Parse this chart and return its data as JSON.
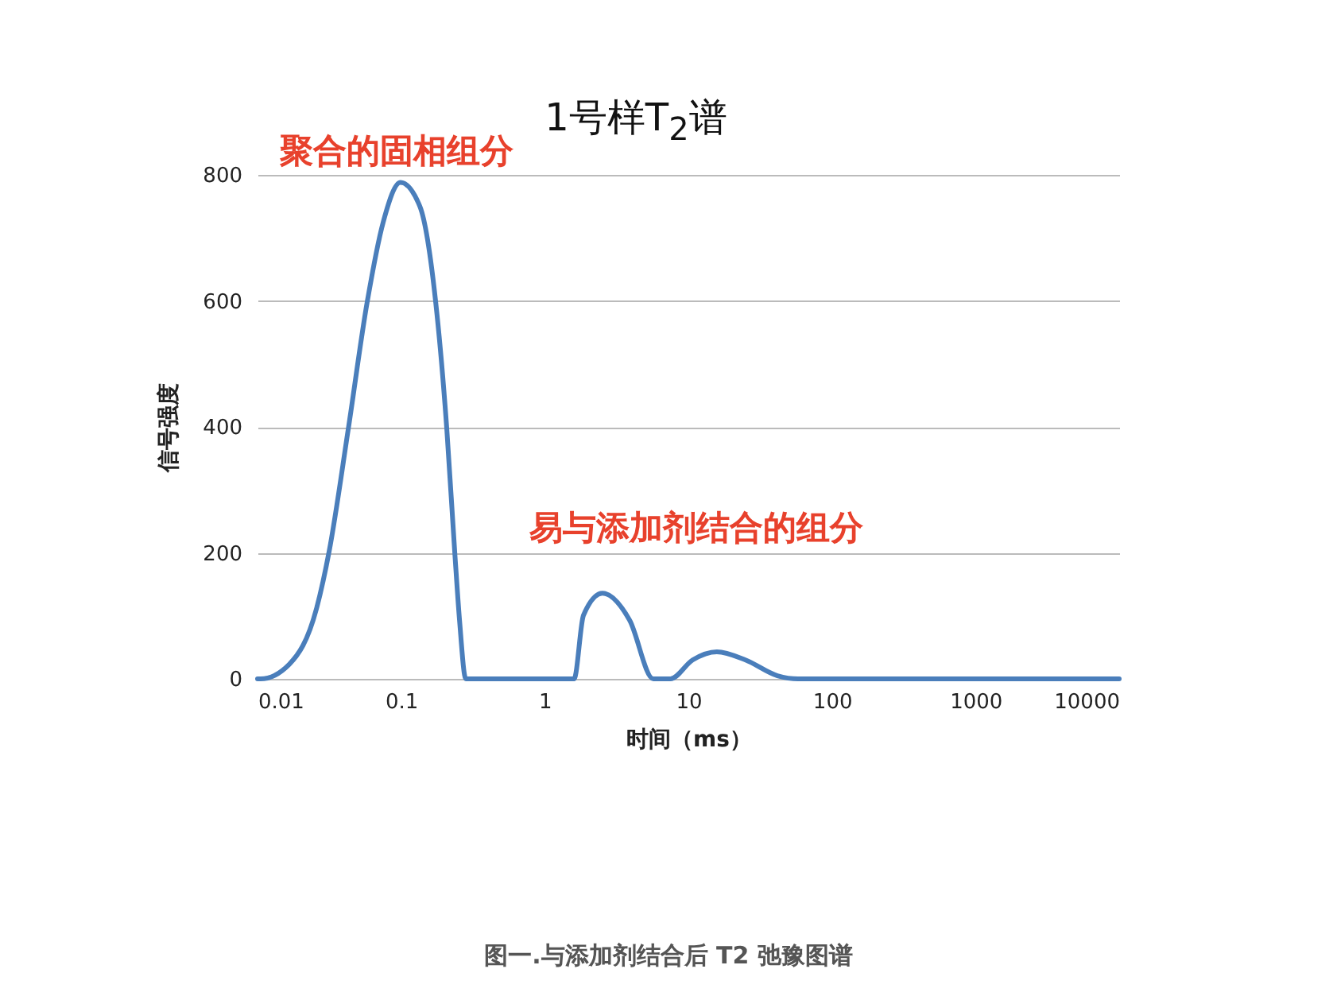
{
  "chart_data": {
    "type": "line",
    "title": "1号样T$_{2}$谱",
    "xlabel": "时间（ms）",
    "ylabel": "信号强度",
    "log": "x",
    "grid": "y",
    "legend": false,
    "marker": "none",
    "line_style": "solid",
    "xlim": [
      0.01,
      10000
    ],
    "xticks": [
      0.01,
      0.1,
      1,
      10,
      100,
      1000,
      10000
    ],
    "ylim": [
      0,
      800
    ],
    "yticks": [
      0,
      200,
      400,
      600,
      800
    ],
    "x": [
      0.01,
      0.0105,
      0.0166,
      0.0257,
      0.0315,
      0.0428,
      0.058,
      0.075,
      0.099,
      0.135,
      0.174,
      0.208,
      0.236,
      0.255,
      0.282,
      1.6,
      1.86,
      2.52,
      3.9,
      5.7,
      7.5,
      10.7,
      15.8,
      25,
      41.7,
      58,
      10000
    ],
    "series": [
      {
        "color": "#4a7ebb",
        "values": [
          0,
          0,
          23,
          111,
          202,
          396,
          598,
          725,
          788,
          750,
          598,
          396,
          202,
          93,
          0,
          0,
          101,
          136,
          93,
          0,
          0,
          30,
          43,
          30,
          5,
          0,
          0
        ]
      }
    ],
    "annotations": [
      "聚合的固相组分",
      "易与添加剂结合的组分",
      "图一.与添加剂结合后 T2 弛豫图谱"
    ]
  }
}
